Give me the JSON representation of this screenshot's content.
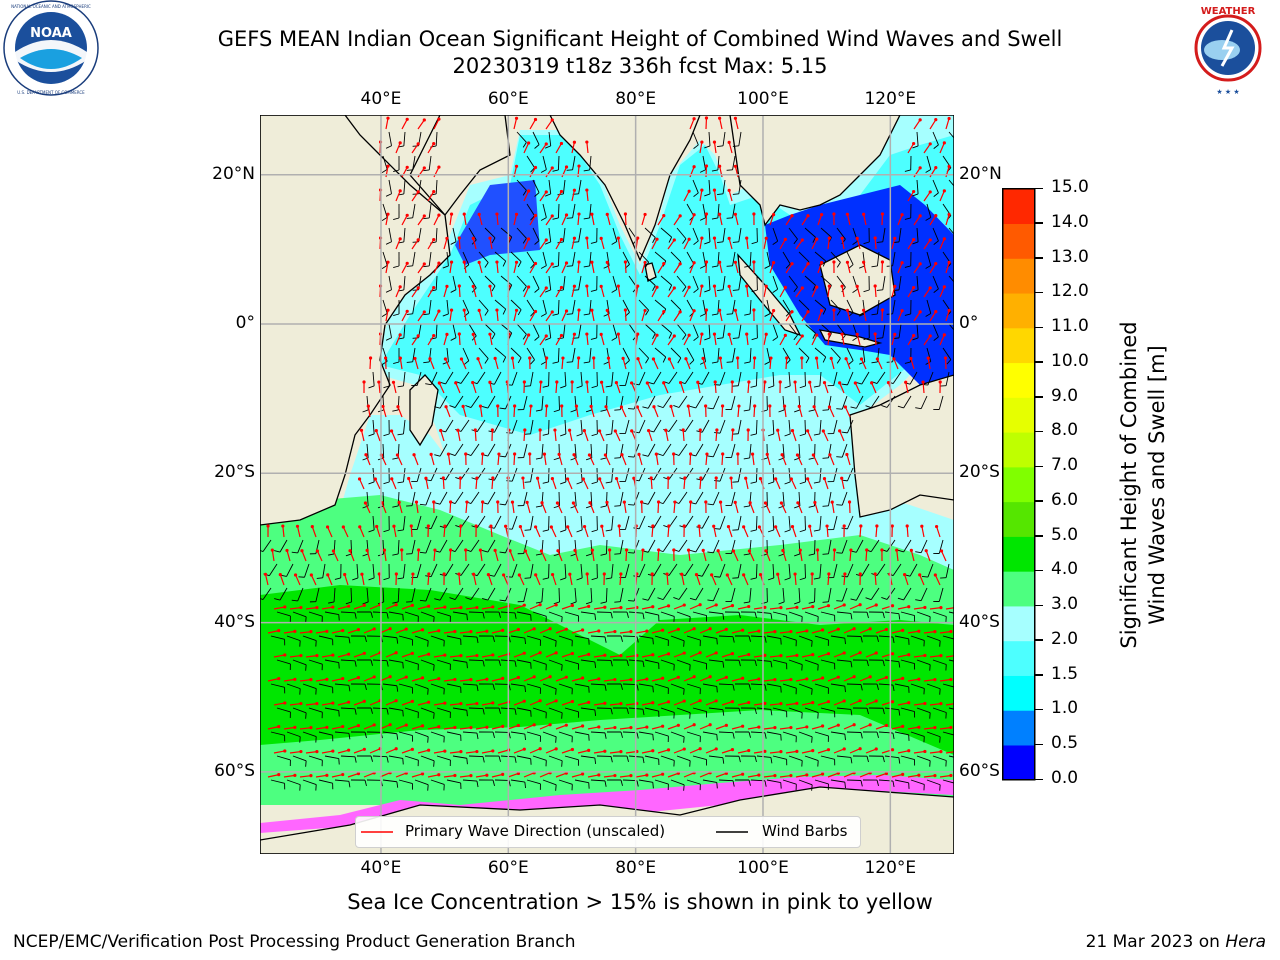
{
  "header": {
    "title": "GEFS MEAN Indian Ocean Significant Height of Combined Wind Waves and Swell",
    "subtitle": "20230319 t18z 336h fcst   Max: 5.15"
  },
  "logos": {
    "left": {
      "name": "NOAA",
      "ring_text": "NATIONAL OCEANIC AND ATMOSPHERIC ADMINISTRATION · U.S. DEPARTMENT OF COMMERCE"
    },
    "right": {
      "name": "NATIONAL WEATHER SERVICE"
    }
  },
  "map": {
    "lon_labels": [
      "40°E",
      "60°E",
      "80°E",
      "100°E",
      "120°E"
    ],
    "lat_labels": [
      "20°N",
      "0°",
      "20°S",
      "40°S",
      "60°S"
    ],
    "lon_values": [
      40,
      60,
      80,
      100,
      120
    ],
    "lat_values": [
      20,
      0,
      -20,
      -40,
      -60
    ],
    "lon_range": [
      21,
      130
    ],
    "lat_range": [
      -71,
      28
    ],
    "grid": true,
    "land_color": "#efedd9"
  },
  "legend": {
    "wave_label": "Primary Wave Direction (unscaled)",
    "wind_label": "Wind Barbs",
    "wave_color": "#ff0000",
    "wind_color": "#000000"
  },
  "colorbar": {
    "title_line1": "Significant Height of Combined",
    "title_line2": "Wind Waves and Swell [m]",
    "tick_labels": [
      "0.0",
      "0.5",
      "1.0",
      "1.5",
      "2.0",
      "3.0",
      "4.0",
      "5.0",
      "6.0",
      "7.0",
      "8.0",
      "9.0",
      "10.0",
      "11.0",
      "12.0",
      "13.0",
      "14.0",
      "15.0"
    ],
    "colors": [
      "#0000ff",
      "#0080ff",
      "#00ffff",
      "#4dffff",
      "#a6ffff",
      "#4dff80",
      "#00e600",
      "#55e600",
      "#80ff00",
      "#bfff00",
      "#e6ff00",
      "#ffff00",
      "#ffd700",
      "#ffb000",
      "#ff8c00",
      "#ff5a00",
      "#ff2800"
    ]
  },
  "footer": {
    "note": "Sea Ice Concentration > 15% is shown in pink to yellow",
    "credit": "NCEP/EMC/Verification Post Processing Product Generation Branch",
    "date": "21 Mar 2023 on ",
    "machine": "Hera"
  }
}
